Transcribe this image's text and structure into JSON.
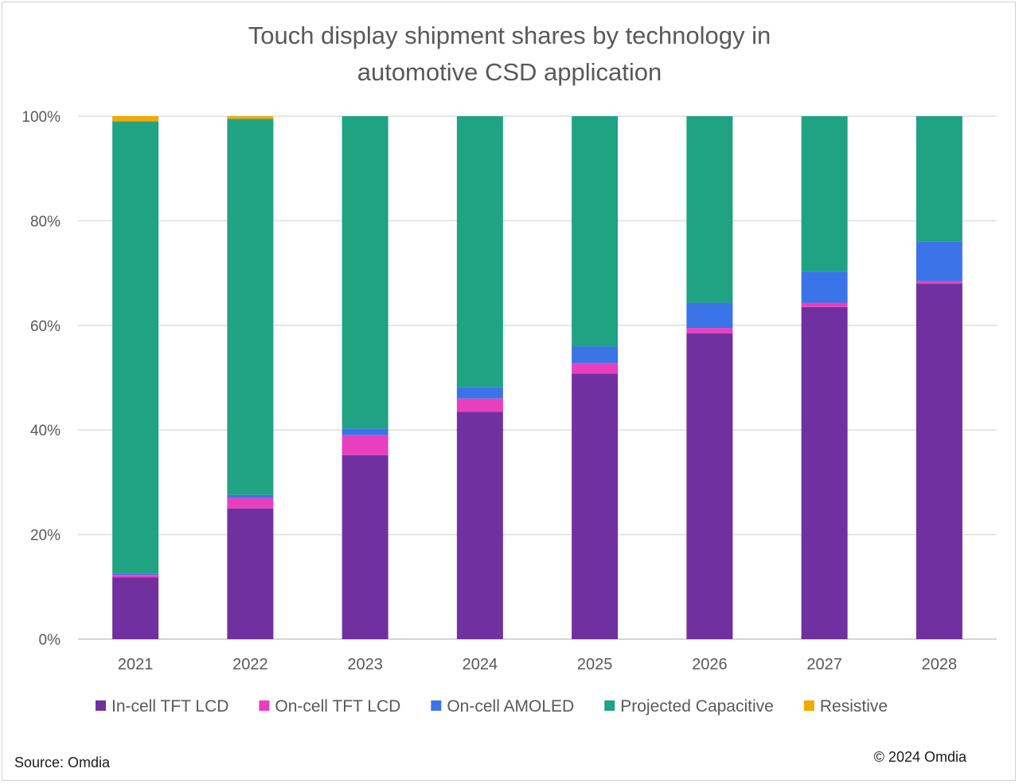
{
  "chart_data": {
    "type": "bar",
    "stacked": true,
    "title": "Touch display shipment shares by technology in automotive CSD application",
    "title_lines": [
      "Touch display shipment shares by technology in",
      "automotive CSD application"
    ],
    "categories": [
      "2021",
      "2022",
      "2023",
      "2024",
      "2025",
      "2026",
      "2027",
      "2028"
    ],
    "yticks": [
      "0%",
      "20%",
      "40%",
      "60%",
      "80%",
      "100%"
    ],
    "ylim": [
      0,
      100
    ],
    "grid": true,
    "legend_position": "bottom",
    "series": [
      {
        "name": "In-cell TFT LCD",
        "color": "#7030a0",
        "values": [
          11.8,
          25.0,
          35.2,
          43.5,
          50.8,
          58.5,
          63.5,
          68.0
        ]
      },
      {
        "name": "On-cell TFT LCD",
        "color": "#e83fbf",
        "values": [
          0.5,
          2.0,
          3.8,
          2.5,
          2.0,
          1.0,
          0.8,
          0.5
        ]
      },
      {
        "name": "On-cell AMOLED",
        "color": "#3b74e6",
        "values": [
          0.2,
          0.6,
          1.3,
          2.2,
          3.2,
          4.8,
          6.0,
          7.5
        ]
      },
      {
        "name": "Projected Capacitive",
        "color": "#1fa383",
        "values": [
          86.5,
          71.9,
          59.7,
          51.8,
          44.0,
          35.7,
          29.7,
          24.0
        ]
      },
      {
        "name": "Resistive",
        "color": "#f2a900",
        "values": [
          1.0,
          0.5,
          0,
          0,
          0,
          0,
          0,
          0
        ]
      }
    ]
  },
  "footer": {
    "source": "Source: Omdia",
    "copyright": "© 2024 Omdia"
  }
}
